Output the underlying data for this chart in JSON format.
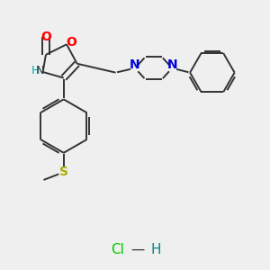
{
  "background_color": "#efefef",
  "figsize": [
    3.0,
    3.0
  ],
  "dpi": 100,
  "bond_color": "#333333",
  "bond_width": 1.4,
  "dbo": 0.009,
  "xlim": [
    0.05,
    0.95
  ],
  "ylim": [
    0.08,
    0.98
  ],
  "O_color": "#ff0000",
  "N_color": "#0000dd",
  "NH_color": "#00aaaa",
  "S_color": "#aaaa00",
  "Cl_color": "#00cc00",
  "H_color": "#008888",
  "C_color": "#333333"
}
